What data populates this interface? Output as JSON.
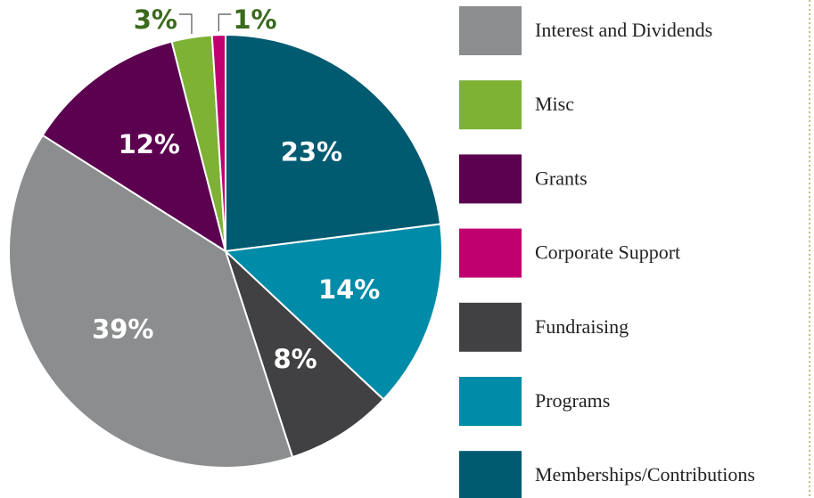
{
  "chart_data": {
    "type": "pie",
    "values": [
      23,
      14,
      8,
      39,
      12,
      3,
      1
    ],
    "value_labels": [
      "23%",
      "14%",
      "8%",
      "39%",
      "12%",
      "3%",
      "1%"
    ],
    "colors": [
      "#005a70",
      "#008ba8",
      "#414143",
      "#8b8d8f",
      "#5c0050",
      "#7db235",
      "#c0006e"
    ],
    "legend": [
      {
        "name": "Interest and Dividends",
        "color": "#8b8d8f"
      },
      {
        "name": "Misc",
        "color": "#7db235"
      },
      {
        "name": "Grants",
        "color": "#5c0050"
      },
      {
        "name": "Corporate Support",
        "color": "#c0006e"
      },
      {
        "name": "Fundraising",
        "color": "#414143"
      },
      {
        "name": "Programs",
        "color": "#008ba8"
      },
      {
        "name": "Memberships/Contributions",
        "color": "#005a70"
      }
    ]
  }
}
